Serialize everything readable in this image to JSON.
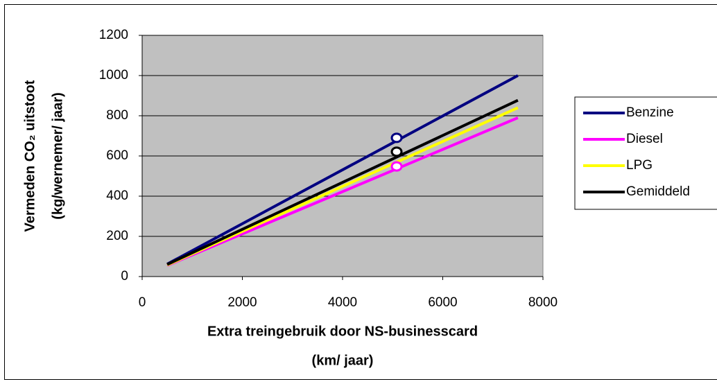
{
  "chart_data": {
    "type": "line",
    "ylabel": [
      "Vermeden CO₂ uitstoot",
      "(kg/wernemer/ jaar)"
    ],
    "xlabel": [
      "Extra treingebruik door NS-businesscard",
      "(km/ jaar)"
    ],
    "x": [
      500,
      7500
    ],
    "series": [
      {
        "name": "Benzine",
        "color": "#000080",
        "values": [
          62,
          1000
        ],
        "marker": {
          "x": 5080,
          "y": 690
        }
      },
      {
        "name": "Diesel",
        "color": "#ff00ff",
        "values": [
          55,
          790
        ],
        "marker": {
          "x": 5080,
          "y": 548
        }
      },
      {
        "name": "LPG",
        "color": "#ffff00",
        "values": [
          57,
          840
        ]
      },
      {
        "name": "Gemiddeld",
        "color": "#000000",
        "values": [
          60,
          877
        ],
        "marker": {
          "x": 5080,
          "y": 621
        }
      }
    ],
    "xlim": [
      0,
      8000
    ],
    "xticks": [
      0,
      2000,
      4000,
      6000,
      8000
    ],
    "ylim": [
      0,
      1200
    ],
    "yticks": [
      0,
      200,
      400,
      600,
      800,
      1000,
      1200
    ],
    "grid": true,
    "plot_background": "#c0c0c0",
    "legend": "right"
  }
}
